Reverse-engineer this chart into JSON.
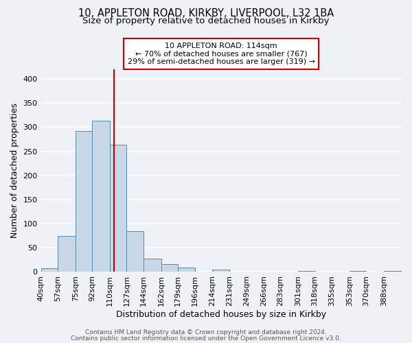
{
  "title1": "10, APPLETON ROAD, KIRKBY, LIVERPOOL, L32 1BA",
  "title2": "Size of property relative to detached houses in Kirkby",
  "xlabel": "Distribution of detached houses by size in Kirkby",
  "ylabel": "Number of detached properties",
  "bin_labels": [
    "40sqm",
    "57sqm",
    "75sqm",
    "92sqm",
    "110sqm",
    "127sqm",
    "144sqm",
    "162sqm",
    "179sqm",
    "196sqm",
    "214sqm",
    "231sqm",
    "249sqm",
    "266sqm",
    "283sqm",
    "301sqm",
    "318sqm",
    "335sqm",
    "353sqm",
    "370sqm",
    "388sqm"
  ],
  "bin_edges": [
    40,
    57,
    75,
    92,
    110,
    127,
    144,
    162,
    179,
    196,
    214,
    231,
    249,
    266,
    283,
    301,
    318,
    335,
    353,
    370,
    388
  ],
  "bar_heights": [
    8,
    75,
    292,
    313,
    263,
    85,
    28,
    16,
    9,
    0,
    5,
    0,
    0,
    0,
    0,
    2,
    0,
    0,
    2,
    0,
    2
  ],
  "bar_color": "#c8d8e8",
  "bar_edge_color": "#5588aa",
  "property_line_x": 114,
  "ylim": [
    0,
    420
  ],
  "yticks": [
    0,
    50,
    100,
    150,
    200,
    250,
    300,
    350,
    400
  ],
  "annotation_box_text": "10 APPLETON ROAD: 114sqm\n← 70% of detached houses are smaller (767)\n29% of semi-detached houses are larger (319) →",
  "annotation_box_color": "#ffffff",
  "annotation_box_edge_color": "#cc0000",
  "vline_color": "#cc0000",
  "footer1": "Contains HM Land Registry data © Crown copyright and database right 2024.",
  "footer2": "Contains public sector information licensed under the Open Government Licence v3.0.",
  "background_color": "#eef2f7",
  "grid_color": "#ffffff",
  "title_fontsize": 10.5,
  "subtitle_fontsize": 9.5,
  "axis_label_fontsize": 9,
  "tick_fontsize": 8,
  "footer_fontsize": 6.5
}
